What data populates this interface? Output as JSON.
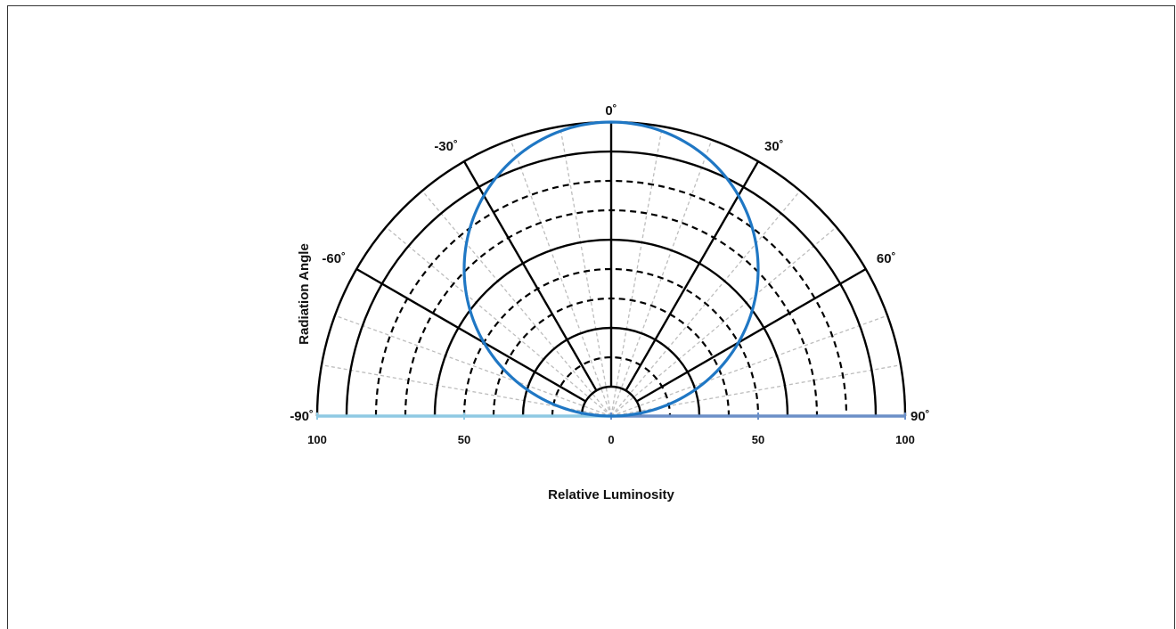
{
  "chart_data": {
    "type": "polar",
    "title": "",
    "xlabel": "Relative Luminosity",
    "ylabel": "Radiation Angle",
    "angle_range": [
      -90,
      90
    ],
    "angle_ticks": [
      "-90˚",
      "-60˚",
      "-30˚",
      "0˚",
      "30˚",
      "60˚",
      "90˚"
    ],
    "angle_tick_values": [
      -90,
      -60,
      -30,
      0,
      30,
      60,
      90
    ],
    "radial_range": [
      0,
      100
    ],
    "radial_ticks": [
      "100",
      "50",
      "0",
      "50",
      "100"
    ],
    "radial_tick_values": [
      -100,
      -50,
      0,
      50,
      100
    ],
    "radial_solid_rings": [
      10,
      30,
      60,
      90,
      100
    ],
    "radial_dashed_rings": [
      20,
      40,
      50,
      70,
      80
    ],
    "spokes_minor_step_deg": 10,
    "series": [
      {
        "color": "#1f77c4",
        "shape": "cosine (Lambertian)",
        "points": [
          {
            "angle": -90,
            "value": 0
          },
          {
            "angle": -75,
            "value": 26
          },
          {
            "angle": -60,
            "value": 50
          },
          {
            "angle": -45,
            "value": 71
          },
          {
            "angle": -30,
            "value": 87
          },
          {
            "angle": -15,
            "value": 97
          },
          {
            "angle": 0,
            "value": 100
          },
          {
            "angle": 15,
            "value": 97
          },
          {
            "angle": 30,
            "value": 87
          },
          {
            "angle": 45,
            "value": 71
          },
          {
            "angle": 60,
            "value": 50
          },
          {
            "angle": 75,
            "value": 26
          },
          {
            "angle": 90,
            "value": 0
          }
        ]
      }
    ],
    "baseline_colors": {
      "left": "#8ec9e3",
      "right": "#6b8fc7"
    },
    "grid": true,
    "legend": "none"
  }
}
